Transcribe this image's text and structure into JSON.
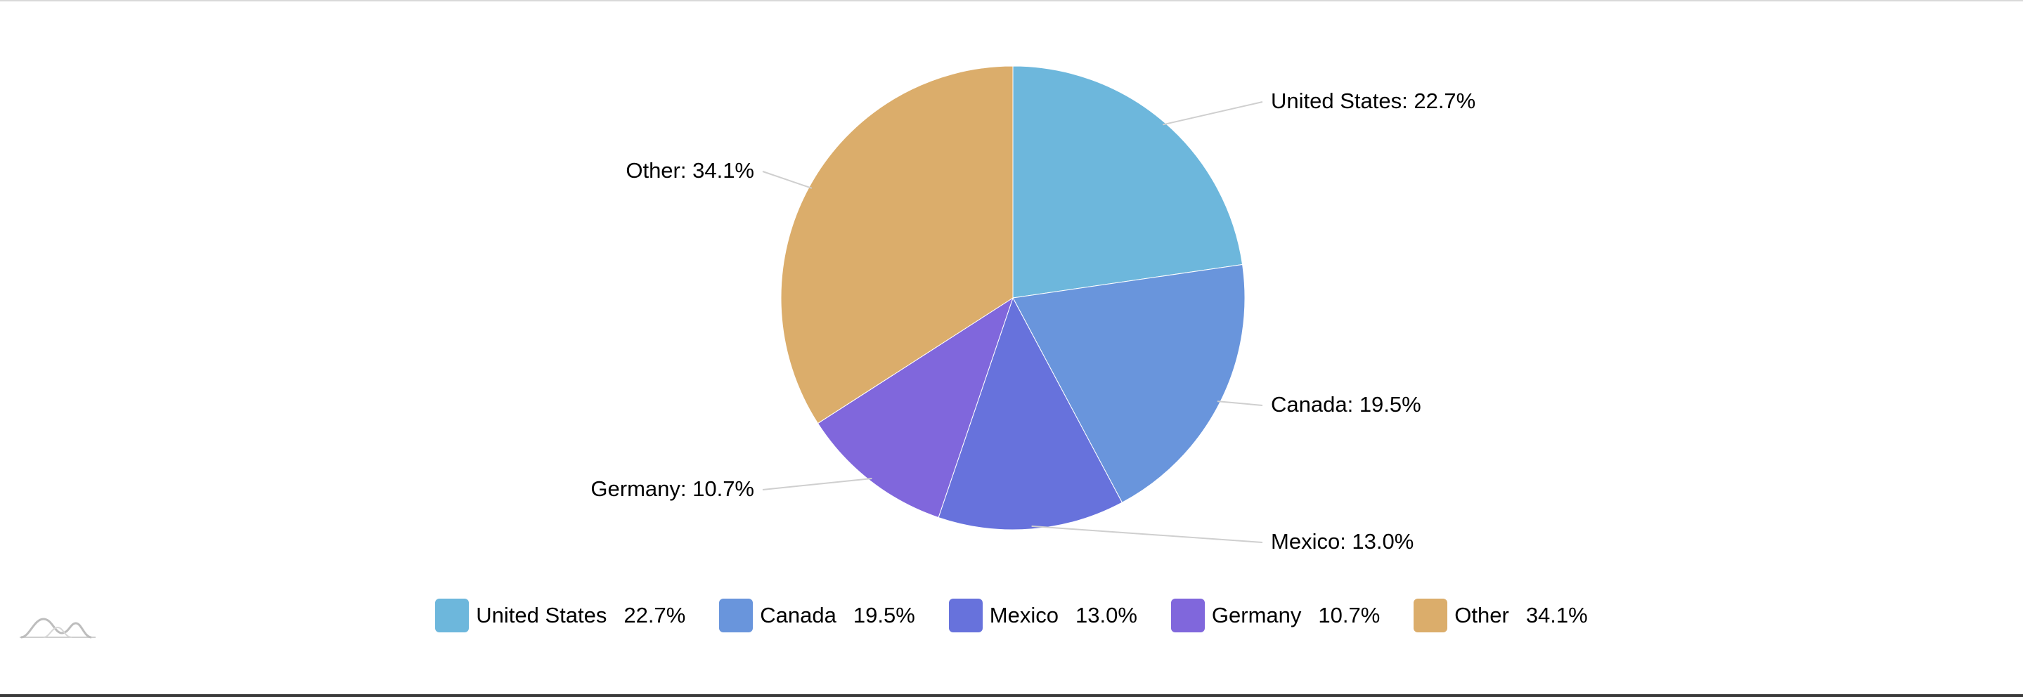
{
  "chart_data": {
    "type": "pie",
    "categories": [
      "United States",
      "Canada",
      "Mexico",
      "Germany",
      "Other"
    ],
    "values": [
      22.7,
      19.5,
      13.0,
      10.7,
      34.1
    ],
    "value_labels": [
      "22.7%",
      "19.5%",
      "13.0%",
      "10.7%",
      "34.1%"
    ],
    "slice_labels": [
      "United States: 22.7%",
      "Canada: 19.5%",
      "Mexico: 13.0%",
      "Germany: 10.7%",
      "Other: 34.1%"
    ],
    "colors": [
      "#6db7dc",
      "#6995dc",
      "#6772dc",
      "#8067dc",
      "#dbad6b"
    ],
    "start_angle": "12 o'clock",
    "direction": "clockwise",
    "legend_position": "bottom"
  },
  "logo": {
    "icon": "amcharts-logo-icon"
  }
}
